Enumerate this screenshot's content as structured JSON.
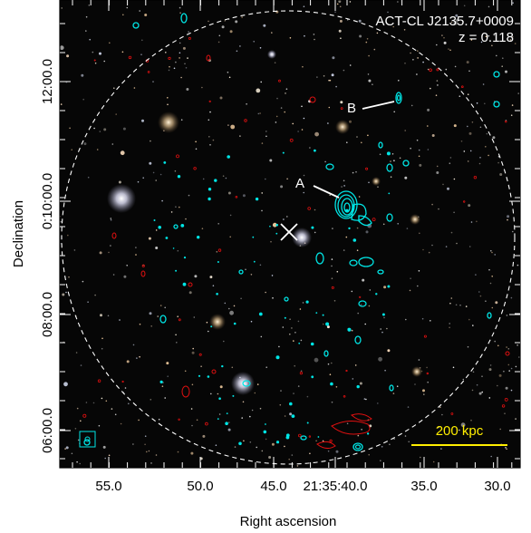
{
  "image": {
    "cluster_name": "ACT-CL J2135.7+0009",
    "redshift": "z = 0.118",
    "scale_bar_label": "200 kpc",
    "source_labels": [
      "A",
      "B"
    ]
  },
  "axes": {
    "xlabel": "Right ascension",
    "ylabel": "Declination",
    "x_ticks": [
      "55.0",
      "50.0",
      "45.0",
      "21:35:40.0",
      "35.0",
      "30.0"
    ],
    "y_ticks": [
      "12:00.0",
      "0:10:00.0",
      "08:00.0",
      "06:00.0"
    ]
  },
  "colors": {
    "radio_contour": "#00e5e5",
    "negative_contour": "#e01010",
    "scale_bar": "#ffee00",
    "circle": "#ffffff",
    "background": "#050505"
  }
}
